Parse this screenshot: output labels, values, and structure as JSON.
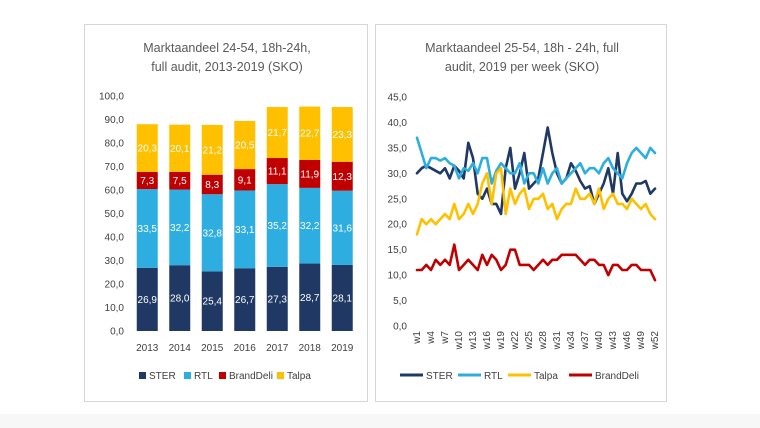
{
  "chart_data": [
    {
      "type": "bar",
      "stacked": true,
      "title_lines": [
        "Marktaandeel 24-54, 18h-24h,",
        "full audit, 2013-2019 (SKO)"
      ],
      "categories": [
        "2013",
        "2014",
        "2015",
        "2016",
        "2017",
        "2018",
        "2019"
      ],
      "y_ticks": [
        "100,0",
        "90,0",
        "80,0",
        "70,0",
        "60,0",
        "50,0",
        "40,0",
        "30,0",
        "20,0",
        "10,0",
        "0,0"
      ],
      "ylim": [
        0,
        100
      ],
      "series": [
        {
          "name": "STER",
          "color": "#1f3864",
          "values": [
            26.9,
            28.0,
            25.4,
            26.7,
            27.3,
            28.7,
            28.1
          ],
          "labels": [
            "26,9",
            "28,0",
            "25,4",
            "26,7",
            "27,3",
            "28,7",
            "28,1"
          ]
        },
        {
          "name": "RTL",
          "color": "#2eaee0",
          "values": [
            33.5,
            32.2,
            32.8,
            33.1,
            35.2,
            32.2,
            31.6
          ],
          "labels": [
            "33,5",
            "32,2",
            "32,8",
            "33,1",
            "35,2",
            "32,2",
            "31,6"
          ]
        },
        {
          "name": "BrandDeli",
          "color": "#c00000",
          "values": [
            7.3,
            7.5,
            8.3,
            9.1,
            11.1,
            11.9,
            12.3
          ],
          "labels": [
            "7,3",
            "7,5",
            "8,3",
            "9,1",
            "11,1",
            "11,9",
            "12,3"
          ]
        },
        {
          "name": "Talpa",
          "color": "#ffc000",
          "values": [
            20.3,
            20.1,
            21.2,
            20.5,
            21.7,
            22.7,
            23.3
          ],
          "labels": [
            "20,3",
            "20,1",
            "21,2",
            "20,5",
            "21,7",
            "22,7",
            "23,3"
          ]
        }
      ],
      "legend_order": [
        0,
        1,
        2,
        3
      ]
    },
    {
      "type": "line",
      "title_lines": [
        "Marktaandeel 25-54, 18h - 24h, full",
        "audit, 2019 per week (SKO)"
      ],
      "x_tick_labels": [
        "w1",
        "w4",
        "w7",
        "w10",
        "w13",
        "w16",
        "w19",
        "w22",
        "w25",
        "w28",
        "w31",
        "w34",
        "w37",
        "w40",
        "w43",
        "w46",
        "w49",
        "w52"
      ],
      "y_ticks": [
        "45,0",
        "40,0",
        "35,0",
        "30,0",
        "25,0",
        "20,0",
        "15,0",
        "10,0",
        "5,0",
        "0,0"
      ],
      "ylim": [
        0,
        45
      ],
      "series": [
        {
          "name": "STER",
          "color": "#1f3864",
          "values": [
            30,
            31,
            31.5,
            31,
            30.5,
            30,
            31,
            29,
            31.5,
            30.5,
            29,
            36,
            33,
            26,
            25,
            27,
            24,
            24,
            22,
            31,
            35,
            27,
            30,
            34,
            27,
            28,
            29,
            34,
            39,
            34,
            30,
            28,
            29,
            32,
            30.5,
            28.5,
            27,
            27.5,
            24,
            26,
            28,
            31,
            26,
            34,
            26,
            24.5,
            26,
            28,
            28,
            28.5,
            26,
            27
          ]
        },
        {
          "name": "RTL",
          "color": "#2eaee0",
          "values": [
            37,
            34,
            31,
            33,
            33,
            32.5,
            33,
            32,
            31.5,
            29,
            31,
            30.5,
            32,
            30,
            33,
            33,
            28,
            30.5,
            32,
            31,
            30,
            30,
            32,
            28,
            30,
            30,
            28,
            31,
            28,
            30,
            31,
            28,
            29,
            30,
            31,
            32,
            30,
            31,
            31,
            30,
            32,
            33,
            31,
            30,
            29,
            32,
            34,
            35,
            34,
            33,
            35,
            34
          ]
        },
        {
          "name": "Talpa",
          "color": "#ffc000",
          "values": [
            18,
            21,
            20,
            21,
            20,
            21,
            22,
            21,
            24,
            21,
            22,
            24,
            22,
            24,
            28,
            30,
            24,
            30,
            31,
            22,
            27,
            24,
            26,
            27,
            23,
            25,
            25,
            26,
            23,
            24,
            21,
            23,
            24,
            24,
            27,
            25,
            25,
            26,
            24,
            27,
            23,
            25,
            26,
            24,
            24,
            23,
            25,
            24,
            23,
            24,
            22,
            21
          ]
        },
        {
          "name": "BrandDeli",
          "color": "#c00000",
          "values": [
            11,
            11,
            12,
            11,
            13,
            12,
            13,
            12,
            16,
            11,
            12,
            13,
            12,
            11,
            14,
            12,
            14,
            13,
            11,
            12,
            15,
            15,
            12,
            12,
            12,
            11,
            12,
            13,
            12,
            13,
            13,
            14,
            14,
            14,
            14,
            13,
            12,
            13,
            13,
            12,
            12,
            10,
            12,
            12,
            11,
            11,
            12,
            12,
            11,
            11,
            11,
            9
          ]
        }
      ],
      "legend_order": [
        0,
        1,
        2,
        3
      ]
    }
  ]
}
